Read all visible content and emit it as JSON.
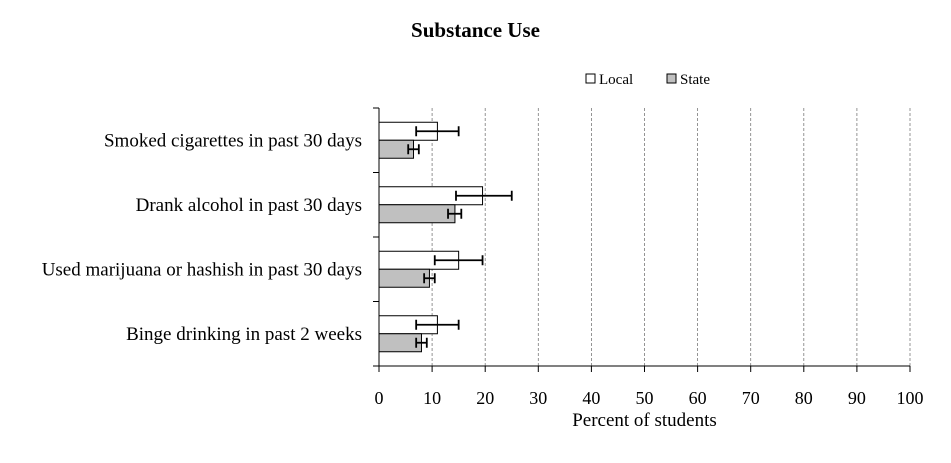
{
  "chart_data": {
    "type": "bar",
    "orientation": "horizontal",
    "title": "Substance Use",
    "xlabel": "Percent of students",
    "ylabel": "",
    "xlim": [
      0,
      100
    ],
    "xticks": [
      0,
      10,
      20,
      30,
      40,
      50,
      60,
      70,
      80,
      90,
      100
    ],
    "grid": "vertical dashed",
    "legend_position": "top-right",
    "categories": [
      "Smoked cigarettes in past 30 days",
      "Drank alcohol in past 30 days",
      "Used marijuana or hashish in past 30 days",
      "Binge drinking in past 2 weeks"
    ],
    "series": [
      {
        "name": "Local",
        "color": "#ffffff",
        "values": [
          11,
          19.5,
          15,
          11
        ],
        "error_low": [
          7,
          14.5,
          10.5,
          7
        ],
        "error_high": [
          15,
          25,
          19.5,
          15
        ]
      },
      {
        "name": "State",
        "color": "#c0c0c0",
        "values": [
          6.5,
          14.3,
          9.5,
          8
        ],
        "error_low": [
          5.5,
          13,
          8.5,
          7
        ],
        "error_high": [
          7.5,
          15.5,
          10.5,
          9
        ]
      }
    ]
  }
}
